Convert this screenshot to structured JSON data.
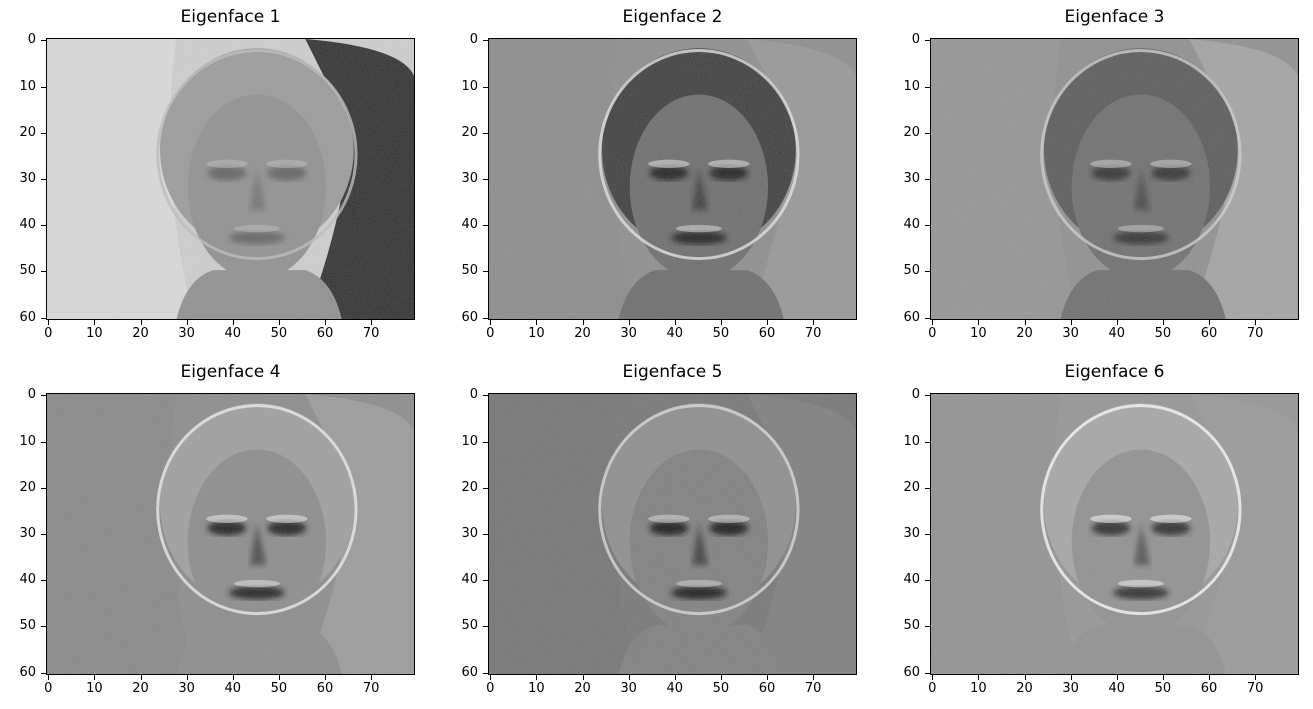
{
  "figure": {
    "panels": [
      {
        "title": "Eigenface 1",
        "style": "light-bg"
      },
      {
        "title": "Eigenface 2",
        "style": "contrast"
      },
      {
        "title": "Eigenface 3",
        "style": "contrast-b"
      },
      {
        "title": "Eigenface 4",
        "style": "edge"
      },
      {
        "title": "Eigenface 5",
        "style": "edge-dark"
      },
      {
        "title": "Eigenface 6",
        "style": "edge-light"
      }
    ],
    "xticks": [
      "0",
      "10",
      "20",
      "30",
      "40",
      "50",
      "60",
      "70"
    ],
    "yticks": [
      "0",
      "10",
      "20",
      "30",
      "40",
      "50",
      "60"
    ],
    "image_width": 80,
    "image_height": 61,
    "colormap": "gray"
  }
}
